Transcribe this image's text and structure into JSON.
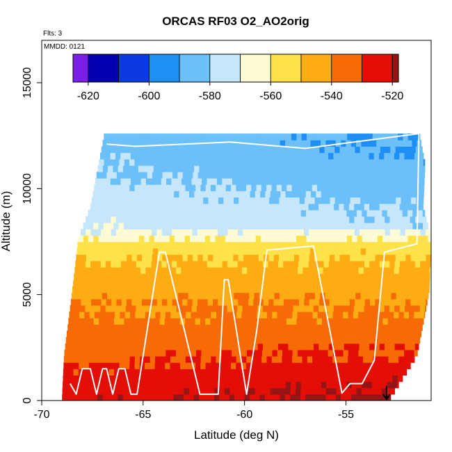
{
  "chart_data": {
    "type": "heatmap",
    "title": "ORCAS RF03 O2_AO2orig",
    "annotations": {
      "flights": "Flts: 3",
      "mmdd": "MMDD: 0121"
    },
    "xlabel": "Latitude (deg N)",
    "ylabel": "Altitude (m)",
    "xlim": [
      -70,
      -50.8
    ],
    "ylim": [
      0,
      17000
    ],
    "x_ticks": [
      -70,
      -65,
      -60,
      -55
    ],
    "x_tick_labels": [
      "-70",
      "-65",
      "-60",
      "-55"
    ],
    "y_ticks": [
      0,
      5000,
      10000,
      15000
    ],
    "y_tick_labels": [
      "0",
      "5000",
      "10000",
      "15000"
    ],
    "colorbar": {
      "min": -625,
      "max": -518,
      "ticks": [
        -620,
        -600,
        -580,
        -560,
        -540,
        -520
      ],
      "tick_labels": [
        "-620",
        "-600",
        "-580",
        "-560",
        "-540",
        "-520"
      ],
      "bins": [
        {
          "from": -625,
          "to": -620,
          "color": "#7a1ee8"
        },
        {
          "from": -620,
          "to": -610,
          "color": "#0000b0"
        },
        {
          "from": -610,
          "to": -600,
          "color": "#0a3ae0"
        },
        {
          "from": -600,
          "to": -590,
          "color": "#1f8ff5"
        },
        {
          "from": -590,
          "to": -580,
          "color": "#6cc0fa"
        },
        {
          "from": -580,
          "to": -570,
          "color": "#c6e6fb"
        },
        {
          "from": -570,
          "to": -560,
          "color": "#fdfbd4"
        },
        {
          "from": -560,
          "to": -550,
          "color": "#fde24a"
        },
        {
          "from": -550,
          "to": -540,
          "color": "#fdac14"
        },
        {
          "from": -540,
          "to": -530,
          "color": "#f66b05"
        },
        {
          "from": -530,
          "to": -520,
          "color": "#e30e05"
        },
        {
          "from": -520,
          "to": -518,
          "color": "#951515"
        }
      ]
    },
    "field_profile": [
      {
        "alt": 0,
        "value": -519
      },
      {
        "alt": 1500,
        "value": -527
      },
      {
        "alt": 3000,
        "value": -535
      },
      {
        "alt": 5000,
        "value": -542
      },
      {
        "alt": 7000,
        "value": -552
      },
      {
        "alt": 7700,
        "value": -562
      },
      {
        "alt": 8000,
        "value": -570
      },
      {
        "alt": 10000,
        "value": -577
      },
      {
        "alt": 12000,
        "value": -583
      }
    ],
    "data_extent": [
      {
        "alt": 0,
        "lat_min": -69.0,
        "lat_max": -52.8
      },
      {
        "alt": 2000,
        "lat_min": -68.9,
        "lat_max": -51.5
      },
      {
        "alt": 5000,
        "lat_min": -68.5,
        "lat_max": -50.9
      },
      {
        "alt": 7500,
        "lat_min": -68.2,
        "lat_max": -50.8
      },
      {
        "alt": 9000,
        "lat_min": -67.6,
        "lat_max": -51.2
      },
      {
        "alt": 11000,
        "lat_min": -67.2,
        "lat_max": -51.1
      },
      {
        "alt": 12500,
        "lat_min": -66.9,
        "lat_max": -51.4
      }
    ],
    "flight_track": [
      [
        -68.6,
        800
      ],
      [
        -68.3,
        300
      ],
      [
        -68.0,
        1500
      ],
      [
        -67.6,
        1500
      ],
      [
        -67.3,
        300
      ],
      [
        -67.0,
        1500
      ],
      [
        -66.8,
        1500
      ],
      [
        -66.5,
        300
      ],
      [
        -66.2,
        1500
      ],
      [
        -65.9,
        1500
      ],
      [
        -65.6,
        300
      ],
      [
        -65.3,
        300
      ],
      [
        -64.2,
        7000
      ],
      [
        -63.9,
        7000
      ],
      [
        -62.2,
        300
      ],
      [
        -61.3,
        300
      ],
      [
        -61.0,
        5700
      ],
      [
        -60.8,
        5700
      ],
      [
        -59.9,
        300
      ],
      [
        -59.4,
        3300
      ],
      [
        -58.9,
        7100
      ],
      [
        -56.6,
        7300
      ],
      [
        -55.2,
        350
      ],
      [
        -54.8,
        800
      ],
      [
        -54.2,
        800
      ],
      [
        -53.6,
        1900
      ],
      [
        -53.1,
        7000
      ],
      [
        -51.5,
        7400
      ],
      [
        -51.4,
        12600
      ],
      [
        -57.0,
        11900
      ],
      [
        -60.7,
        12200
      ],
      [
        -65.4,
        12000
      ],
      [
        -66.8,
        12100
      ]
    ],
    "arrow_marker": {
      "lat": -53.0,
      "alt_from": 700,
      "alt_to": 0
    }
  }
}
